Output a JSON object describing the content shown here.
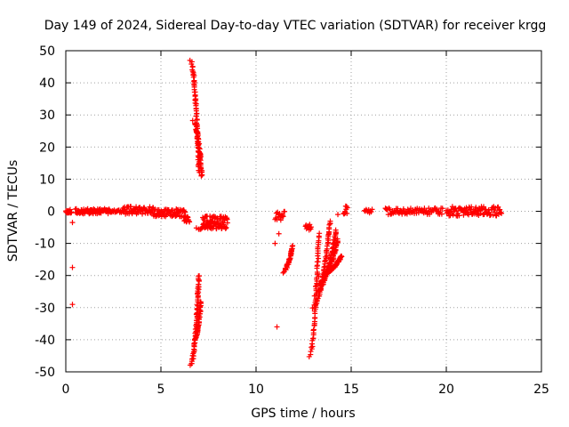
{
  "chart_data": {
    "type": "scatter",
    "title": "Day 149 of 2024, Sidereal Day-to-day VTEC variation (SDTVAR) for receiver krgg",
    "xlabel": "GPS time / hours",
    "ylabel": "SDTVAR / TECUs",
    "xlim": [
      0,
      25
    ],
    "ylim": [
      -50,
      50
    ],
    "xticks": [
      0,
      5,
      10,
      15,
      20,
      25
    ],
    "yticks": [
      -50,
      -40,
      -30,
      -20,
      -10,
      0,
      10,
      20,
      30,
      40,
      50
    ],
    "grid": true,
    "marker": "+",
    "color": "#ff0000",
    "series": [
      {
        "name": "SDTVAR",
        "clusters": [
          {
            "x_range": [
              0.0,
              0.3
            ],
            "y": 0,
            "spread": 0.6,
            "count": 14
          },
          {
            "x_range": [
              0.5,
              2.3
            ],
            "y": 0,
            "spread": 0.8,
            "count": 70
          },
          {
            "x_range": [
              2.3,
              3.0
            ],
            "y": 0,
            "spread": 0.4,
            "count": 18
          },
          {
            "x_range": [
              3.0,
              4.6
            ],
            "y": 0.3,
            "spread": 1.2,
            "count": 70
          },
          {
            "x_range": [
              4.6,
              6.3
            ],
            "y": -0.5,
            "spread": 1.2,
            "count": 70
          },
          {
            "x_range": [
              6.2,
              6.5
            ],
            "y": -2.5,
            "spread": 1.0,
            "count": 12
          },
          {
            "x_range": [
              7.2,
              8.5
            ],
            "y": -3.5,
            "spread": 2.0,
            "count": 80
          },
          {
            "x_range": [
              11.0,
              11.5
            ],
            "y": -1.5,
            "spread": 1.5,
            "count": 16
          },
          {
            "x_range": [
              12.6,
              12.9
            ],
            "y": -5.0,
            "spread": 1.0,
            "count": 12
          },
          {
            "x_range": [
              14.6,
              14.8
            ],
            "y": 0.2,
            "spread": 1.5,
            "count": 10
          },
          {
            "x_range": [
              15.7,
              16.1
            ],
            "y": 0,
            "spread": 0.6,
            "count": 10
          },
          {
            "x_range": [
              16.8,
              19.8
            ],
            "y": 0,
            "spread": 1.0,
            "count": 80
          },
          {
            "x_range": [
              20.0,
              22.9
            ],
            "y": 0,
            "spread": 1.5,
            "count": 100
          }
        ],
        "arcs": [
          {
            "x_start": 6.55,
            "y_start": 47,
            "x_end": 7.0,
            "y_end": 12,
            "count": 70
          },
          {
            "x_start": 6.7,
            "y_start": 28,
            "x_end": 7.15,
            "y_end": 11,
            "count": 50
          },
          {
            "x_start": 6.55,
            "y_start": -48,
            "x_end": 7.0,
            "y_end": -20,
            "count": 70
          },
          {
            "x_start": 6.75,
            "y_start": -40,
            "x_end": 7.1,
            "y_end": -28,
            "count": 40
          },
          {
            "x_start": 6.85,
            "y_start": -5.5,
            "x_end": 7.7,
            "y_end": -3,
            "count": 30
          },
          {
            "x_start": 11.4,
            "y_start": -19,
            "x_end": 11.9,
            "y_end": -11,
            "count": 35
          },
          {
            "x_start": 12.8,
            "y_start": -45,
            "x_end": 13.3,
            "y_end": -7,
            "count": 60
          },
          {
            "x_start": 12.95,
            "y_start": -30,
            "x_end": 13.9,
            "y_end": -3,
            "count": 55
          },
          {
            "x_start": 13.05,
            "y_start": -26,
            "x_end": 14.2,
            "y_end": -6,
            "count": 55
          },
          {
            "x_start": 13.15,
            "y_start": -23,
            "x_end": 14.3,
            "y_end": -9,
            "count": 50
          },
          {
            "x_start": 13.3,
            "y_start": -20,
            "x_end": 14.5,
            "y_end": -14,
            "count": 45
          }
        ],
        "points": [
          {
            "x": 0.35,
            "y": -3.5
          },
          {
            "x": 0.35,
            "y": -17.5
          },
          {
            "x": 0.35,
            "y": -29
          },
          {
            "x": 11.2,
            "y": -7
          },
          {
            "x": 11.0,
            "y": -10
          },
          {
            "x": 11.1,
            "y": -36
          },
          {
            "x": 14.3,
            "y": -1
          },
          {
            "x": 6.05,
            "y": 0.2
          },
          {
            "x": 5.85,
            "y": -0.5
          }
        ]
      }
    ]
  }
}
